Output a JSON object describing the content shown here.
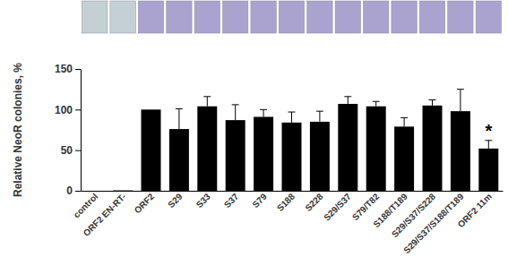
{
  "chart_data": {
    "type": "bar",
    "y_label": "Relative NeoR colonies, %",
    "categories": [
      "control",
      "ORF2 EN-RT-",
      "ORF2",
      "S29",
      "S33",
      "S37",
      "S79",
      "S188",
      "S228",
      "S29/S37",
      "S79/T82",
      "S188/T189",
      "S29/S37/S228",
      "S29/S37/S188/T189",
      "ORF2 11m"
    ],
    "values": [
      0,
      0.5,
      100,
      76,
      104,
      87,
      91,
      84,
      85,
      107,
      104,
      79,
      105,
      98,
      52
    ],
    "errors": [
      null,
      null,
      null,
      25,
      12,
      19,
      9,
      13,
      13,
      9,
      6,
      11,
      7,
      27,
      10
    ],
    "color": "#000000",
    "ylim": [
      0,
      150
    ],
    "yticks": [
      0,
      50,
      100,
      150
    ],
    "grid": false,
    "annotations": [
      {
        "text": "*",
        "category": "ORF2 11m"
      }
    ]
  }
}
